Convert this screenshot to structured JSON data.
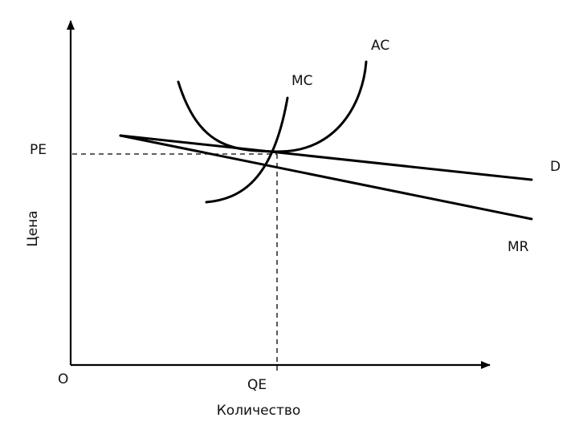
{
  "labels": {
    "origin": "O",
    "x_axis": "Количество",
    "y_axis": "Цена",
    "price_equilibrium": "PE",
    "quantity_equilibrium": "QE"
  },
  "curves": {
    "ac": "AC",
    "mc": "MC",
    "d": "D",
    "mr": "MR"
  }
}
